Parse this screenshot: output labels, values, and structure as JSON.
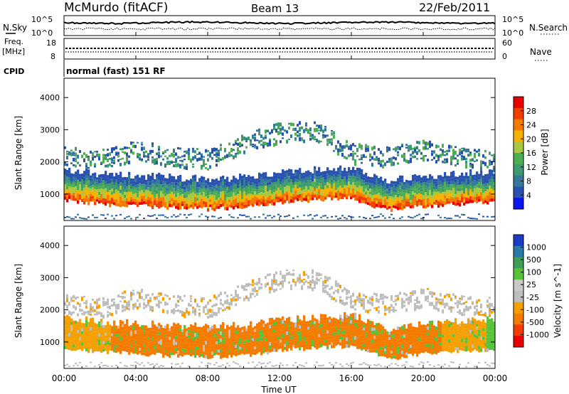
{
  "header": {
    "station": "McMurdo (fitACF)",
    "beam": "Beam 13",
    "date": "22/Feb/2011"
  },
  "left_labels": {
    "nsky": "N.Sky",
    "freq": "Freq.",
    "freq_unit": "[MHz]",
    "cpid": "CPID"
  },
  "right_labels": {
    "nsearch": "N.Search",
    "nave": "Nave"
  },
  "top_axis": {
    "noise_tick_hi": "10^5",
    "noise_tick_lo": "10^0",
    "freq_tick_hi": "18",
    "freq_tick_lo": "8",
    "nave_tick_hi": "60",
    "nave_tick_lo": "0"
  },
  "program": "normal (fast) 151 RF",
  "xaxis": {
    "label": "Time UT",
    "ticks": [
      "00:00",
      "04:00",
      "08:00",
      "12:00",
      "16:00",
      "20:00",
      "00:00"
    ]
  },
  "colors": {
    "power": [
      "#0b14ee",
      "#2952b0",
      "#34789a",
      "#3e9870",
      "#4fae54",
      "#a9c83f",
      "#f5b200",
      "#f57a00",
      "#f03f00",
      "#e80000"
    ],
    "velocity": [
      "#e80000",
      "#f23c00",
      "#f57a00",
      "#f5a000",
      "#bebebe",
      "#c9c9c9",
      "#58c23a",
      "#3f9e5a",
      "#2c7aa5",
      "#1a3cc8"
    ],
    "bg": "#ffffff"
  },
  "chart_data": [
    {
      "type": "heatmap",
      "title": "Power",
      "xlabel": "",
      "ylabel": "Slant Range [km]",
      "ylim": [
        180,
        4600
      ],
      "yticks": [
        "1000",
        "2000",
        "3000",
        "4000"
      ],
      "colorbar": {
        "label": "Power [dB]",
        "range": [
          0,
          32
        ],
        "ticks": [
          "4",
          "8",
          "12",
          "16",
          "20",
          "24",
          "28"
        ]
      },
      "x_hours": [
        0,
        2,
        4,
        6,
        8,
        10,
        12,
        14,
        16,
        18,
        20,
        22,
        24
      ],
      "main_echo_range_km": [
        1150,
        1000,
        950,
        900,
        850,
        900,
        1050,
        1150,
        1200,
        800,
        950,
        1000,
        1100
      ],
      "upper_echo_range_km": [
        2100,
        2000,
        2300,
        2100,
        2000,
        2500,
        2850,
        2900,
        2200,
        2100,
        2300,
        2100,
        2000
      ]
    },
    {
      "type": "heatmap",
      "title": "Velocity",
      "xlabel": "Time UT",
      "ylabel": "Slant Range [km]",
      "ylim": [
        180,
        4600
      ],
      "yticks": [
        "1000",
        "2000",
        "3000",
        "4000"
      ],
      "colorbar": {
        "label": "Velocity [m s^-1]",
        "ticks": [
          "1000",
          "500",
          "100",
          "25",
          "-25",
          "-100",
          "-500",
          "-1000"
        ]
      },
      "x_hours": [
        0,
        2,
        4,
        6,
        8,
        10,
        12,
        14,
        16,
        18,
        20,
        22,
        24
      ],
      "main_echo_velocity_ms": [
        -100,
        -100,
        -300,
        -300,
        -300,
        -300,
        -300,
        -200,
        -300,
        -300,
        -200,
        -100,
        100
      ],
      "upper_echo_velocity_ms": [
        25,
        25,
        -100,
        0,
        0,
        0,
        0,
        0,
        0,
        0,
        0,
        0,
        0
      ]
    }
  ]
}
